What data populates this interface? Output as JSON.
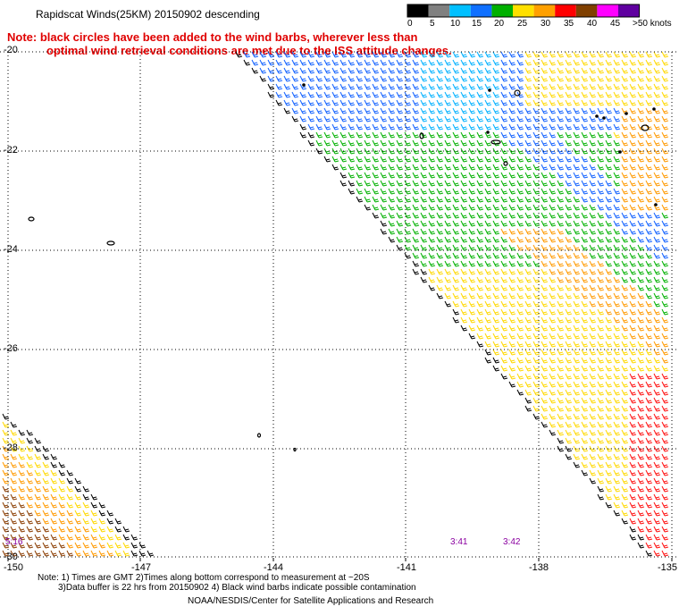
{
  "title": "Rapidscat Winds(25KM) 20150902 descending",
  "note_line1": "Note: black circles have been added to the wind barbs, wherever less than",
  "note_line2": "optimal wind retrieval conditions are met due to the ISS attitude changes.",
  "legend": {
    "unit": ">50 knots",
    "labels": [
      "0",
      "5",
      "10",
      "15",
      "20",
      "25",
      "30",
      "35",
      "40",
      "45"
    ],
    "colors": [
      "#000000",
      "#808080",
      "#00c0ff",
      "#1070ff",
      "#00b000",
      "#ffe000",
      "#ffa000",
      "#ff0000",
      "#804000",
      "#ff00ff",
      "#6000a0"
    ]
  },
  "axes": {
    "lat_labels": [
      "-20",
      "-22",
      "-24",
      "-26",
      "-28",
      "-30"
    ],
    "lon_labels": [
      "-150",
      "-147",
      "-144",
      "-141",
      "-138",
      "-135"
    ]
  },
  "time_labels": [
    "5:16",
    "3:41",
    "3:42"
  ],
  "footnote_line1": "Note: 1) Times are GMT 2)Times along bottom correspond to measurement at ~20S",
  "footnote_line2": "3)Data buffer is 22 hrs from 20150902 4) Black wind barbs indicate possible contamination",
  "credit": "NOAA/NESDIS/Center for Satellite Applications and Research",
  "barb_colors": {
    "black": "#000000",
    "light_blue": "#00b0ff",
    "blue": "#1060ff",
    "green": "#00b000",
    "yellow": "#ffd800",
    "orange": "#ff9a00",
    "red": "#ff1010",
    "brown": "#8a3c00"
  }
}
